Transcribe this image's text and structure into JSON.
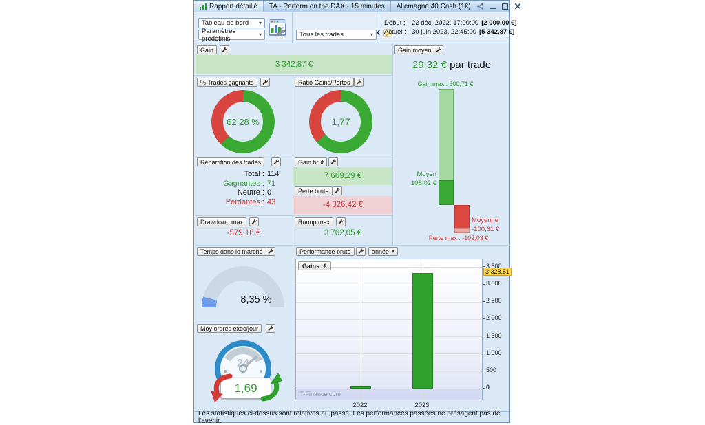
{
  "window": {
    "title_tabs": [
      "Rapport détaillé",
      "TA - Perform on the DAX - 15 minutes",
      "Allemagne 40 Cash (1€)"
    ]
  },
  "toolbar": {
    "view_select": "Tableau de bord",
    "presets_select": "Paramètres prédéfinis",
    "system_name": "TA - Perform on the DAX",
    "trades_select": "Tous les trades",
    "start": {
      "label": "Début :",
      "datetime": "22 déc. 2022, 17:00:00",
      "equity": "[2 000,00 €]"
    },
    "current": {
      "label": "Actuel :",
      "datetime": "30 juin 2023, 22:45:00",
      "equity": "[5 342,87 €]"
    }
  },
  "panels": {
    "gain": {
      "label": "Gain",
      "value": "3 342,87 €"
    },
    "win_rate": {
      "label": "% Trades gagnants",
      "value": "62,28 %",
      "percent": 62.28
    },
    "gain_loss_ratio": {
      "label": "Ratio Gains/Pertes",
      "value": "1,77",
      "ratio": 1.77
    },
    "trade_repartition": {
      "label": "Répartition des trades",
      "rows": [
        {
          "label": "Total :",
          "value": "114",
          "color": "#1a1a1a"
        },
        {
          "label": "Gagnantes :",
          "value": "71",
          "color": "#2f9e2f"
        },
        {
          "label": "Neutre :",
          "value": "0",
          "color": "#1a1a1a"
        },
        {
          "label": "Perdantes :",
          "value": "43",
          "color": "#c43c3c"
        }
      ]
    },
    "gross_gain": {
      "label": "Gain brut",
      "value": "7 669,29 €"
    },
    "gross_loss": {
      "label": "Perte brute",
      "value": "-4 326,42 €"
    },
    "max_drawdown": {
      "label": "Drawdown max",
      "value": "-579,16 €"
    },
    "max_runup": {
      "label": "Runup max",
      "value": "3 762,05 €"
    },
    "avg_gain": {
      "label": "Gain moyen",
      "headline_value": "29,32 €",
      "headline_suffix": " par trade",
      "gain_max_label": "Gain max : 500,71 €",
      "gain_max": 500.71,
      "avg_win_label": "Moyen",
      "avg_win_value": "108,02 €",
      "avg_win": 108.02,
      "avg_loss_label": "Moyenne",
      "avg_loss_value": "-100,61 €",
      "avg_loss": -100.61,
      "loss_max_label": "Perte max : -102,03 €",
      "loss_max": -102.03
    },
    "time_in_market": {
      "label": "Temps dans le marché",
      "value": "8,35 %",
      "percent": 8.35
    },
    "avg_orders_per_day": {
      "label": "Moy ordres exec/jour",
      "value": "1,69",
      "dial_text": "24"
    },
    "gross_performance": {
      "label": "Performance brute",
      "period_select": "année"
    }
  },
  "chart_data": {
    "type": "bar",
    "title": "Performance brute (année)",
    "legend": "Gains: €",
    "categories": [
      "2022",
      "2023"
    ],
    "values": [
      14.36,
      3328.51
    ],
    "current_value_label": "3 328,51",
    "yticks": [
      0,
      500,
      1000,
      1500,
      2000,
      2500,
      3000,
      3500
    ],
    "ytick_labels": [
      "0",
      "500",
      "1 000",
      "1 500",
      "2 000",
      "2 500",
      "3 000",
      "3 500"
    ],
    "ylim": [
      -320,
      3725
    ],
    "bar_color": "#2fa12c",
    "bar_border_color": "#20851e",
    "zero_line_color": "#3c43c9",
    "grid": true,
    "legend_position": "top-left",
    "watermark": "IT-Finance.com"
  },
  "colors": {
    "win": "#3aaa35",
    "loss": "#d8453e",
    "accent_blue": "#6f9ceb",
    "highlight": "#ffd54f"
  },
  "status_bar": {
    "text": "Les statistiques ci-dessus sont relatives au passé. Les performances passées ne présagent pas de l'avenir."
  }
}
